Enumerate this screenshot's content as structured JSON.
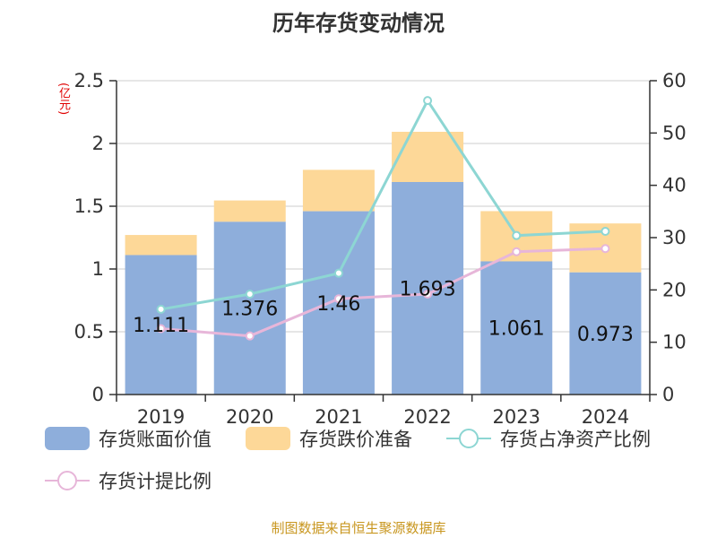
{
  "title": "历年存货变动情况",
  "unit": "(亿元)",
  "source": "制图数据来自恒生聚源数据库",
  "colors": {
    "book_value": "#8eaedb",
    "impairment": "#fdd898",
    "ratio_net_assets": "#8dd6d3",
    "provision_ratio": "#e7b6d9"
  },
  "chart_data": {
    "type": "bar",
    "categories": [
      "2019",
      "2020",
      "2021",
      "2022",
      "2023",
      "2024"
    ],
    "series": [
      {
        "name": "存货账面价值",
        "type": "bar",
        "axis": "left",
        "stack": "total",
        "values": [
          1.111,
          1.376,
          1.46,
          1.693,
          1.061,
          0.973
        ],
        "labels": [
          "1.111",
          "1.376",
          "1.46",
          "1.693",
          "1.061",
          "0.973"
        ]
      },
      {
        "name": "存货跌价准备",
        "type": "bar",
        "axis": "left",
        "stack": "total",
        "values": [
          0.16,
          0.17,
          0.33,
          0.4,
          0.4,
          0.39
        ]
      },
      {
        "name": "存货占净资产比例",
        "type": "line",
        "axis": "right",
        "values": [
          16.3,
          19.2,
          23.2,
          56.2,
          30.4,
          31.2
        ]
      },
      {
        "name": "存货计提比例",
        "type": "line",
        "axis": "right",
        "values": [
          12.6,
          11.2,
          18.3,
          19.2,
          27.3,
          27.9
        ]
      }
    ],
    "ylim": [
      0,
      2.5
    ],
    "yticks": [
      "0",
      "0.5",
      "1",
      "1.5",
      "2",
      "2.5"
    ],
    "y2lim": [
      0,
      60
    ],
    "y2ticks": [
      "0",
      "10",
      "20",
      "30",
      "40",
      "50",
      "60"
    ],
    "grid": true,
    "legend_position": "bottom"
  }
}
